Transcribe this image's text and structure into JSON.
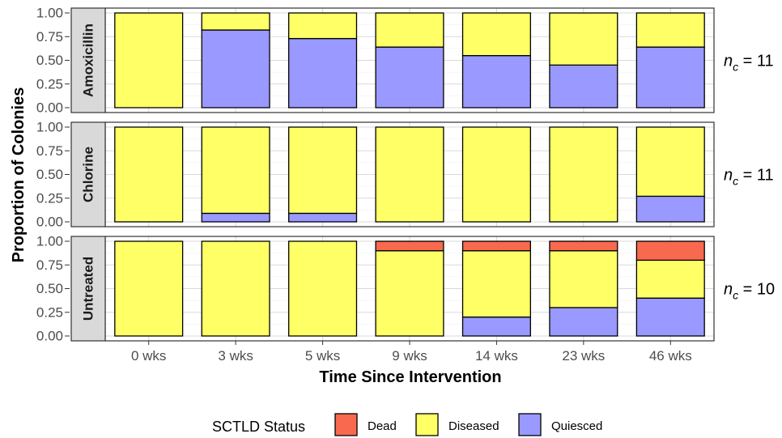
{
  "chart_data": {
    "type": "bar",
    "stacked": true,
    "xlabel": "Time Since Intervention",
    "ylabel": "Proportion of Colonies",
    "categories": [
      "0 wks",
      "3 wks",
      "5 wks",
      "9 wks",
      "14 wks",
      "23 wks",
      "46 wks"
    ],
    "yticks": [
      "0.00",
      "0.25",
      "0.50",
      "0.75",
      "1.00"
    ],
    "ylim": [
      0,
      1
    ],
    "grid": true,
    "legend": {
      "title": "SCTLD Status",
      "position": "bottom",
      "entries": [
        {
          "name": "Dead",
          "color": "#f8694f"
        },
        {
          "name": "Diseased",
          "color": "#ffff66"
        },
        {
          "name": "Quiesced",
          "color": "#9999ff"
        }
      ]
    },
    "panels": [
      {
        "label": "Amoxicillin",
        "n_prefix": "n",
        "n_sub": "c",
        "n_value": "= 11",
        "series": [
          {
            "name": "Quiesced",
            "values": [
              0.0,
              0.82,
              0.73,
              0.64,
              0.55,
              0.45,
              0.64
            ]
          },
          {
            "name": "Diseased",
            "values": [
              1.0,
              0.18,
              0.27,
              0.36,
              0.45,
              0.55,
              0.36
            ]
          },
          {
            "name": "Dead",
            "values": [
              0,
              0,
              0,
              0,
              0,
              0,
              0
            ]
          }
        ]
      },
      {
        "label": "Chlorine",
        "n_prefix": "n",
        "n_sub": "c",
        "n_value": "= 11",
        "series": [
          {
            "name": "Quiesced",
            "values": [
              0.0,
              0.09,
              0.09,
              0.0,
              0.0,
              0.0,
              0.27
            ]
          },
          {
            "name": "Diseased",
            "values": [
              1.0,
              0.91,
              0.91,
              1.0,
              1.0,
              1.0,
              0.73
            ]
          },
          {
            "name": "Dead",
            "values": [
              0,
              0,
              0,
              0,
              0,
              0,
              0
            ]
          }
        ]
      },
      {
        "label": "Untreated",
        "n_prefix": "n",
        "n_sub": "c",
        "n_value": "= 10",
        "series": [
          {
            "name": "Quiesced",
            "values": [
              0.0,
              0.0,
              0.0,
              0.0,
              0.2,
              0.3,
              0.4
            ]
          },
          {
            "name": "Diseased",
            "values": [
              1.0,
              1.0,
              1.0,
              0.9,
              0.7,
              0.6,
              0.4
            ]
          },
          {
            "name": "Dead",
            "values": [
              0.0,
              0.0,
              0.0,
              0.1,
              0.1,
              0.1,
              0.2
            ]
          }
        ]
      }
    ]
  }
}
